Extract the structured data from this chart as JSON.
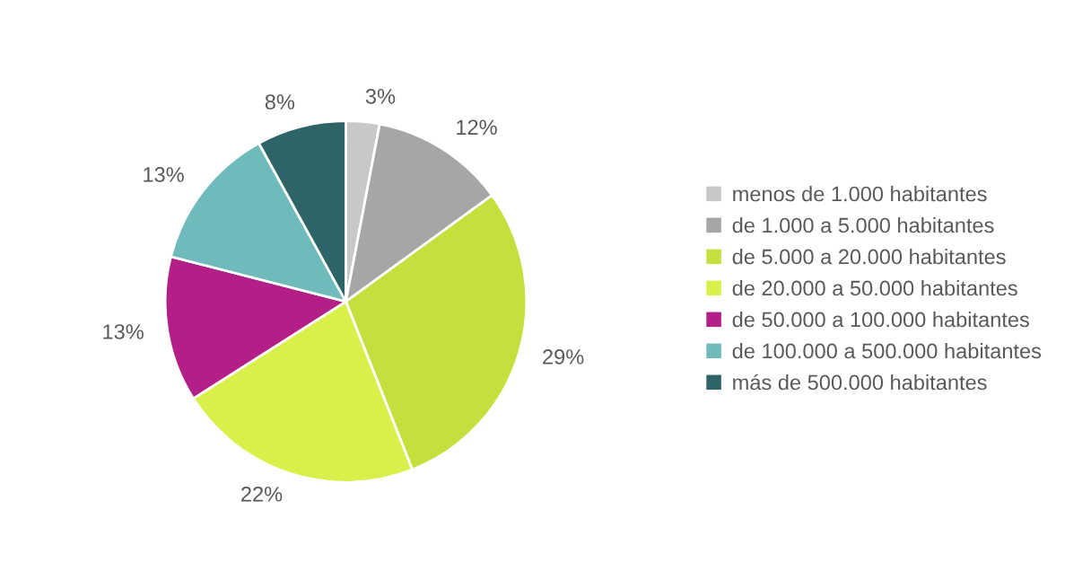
{
  "chart_data": {
    "type": "pie",
    "categories": [
      "menos de 1.000 habitantes",
      "de 1.000 a 5.000 habitantes",
      "de 5.000 a 20.000 habitantes",
      "de 20.000 a 50.000 habitantes",
      "de 50.000 a 100.000 habitantes",
      "de 100.000 a 500.000 habitantes",
      "más de 500.000 habitantes"
    ],
    "values": [
      3,
      12,
      29,
      22,
      13,
      13,
      8
    ],
    "value_labels": [
      "3%",
      "12%",
      "29%",
      "22%",
      "13%",
      "13%",
      "8%"
    ],
    "colors": [
      "#c8c8c8",
      "#a6a6a6",
      "#c5df3d",
      "#d9f04a",
      "#b41f87",
      "#6fbaba",
      "#2f6467"
    ],
    "legend": "right"
  }
}
